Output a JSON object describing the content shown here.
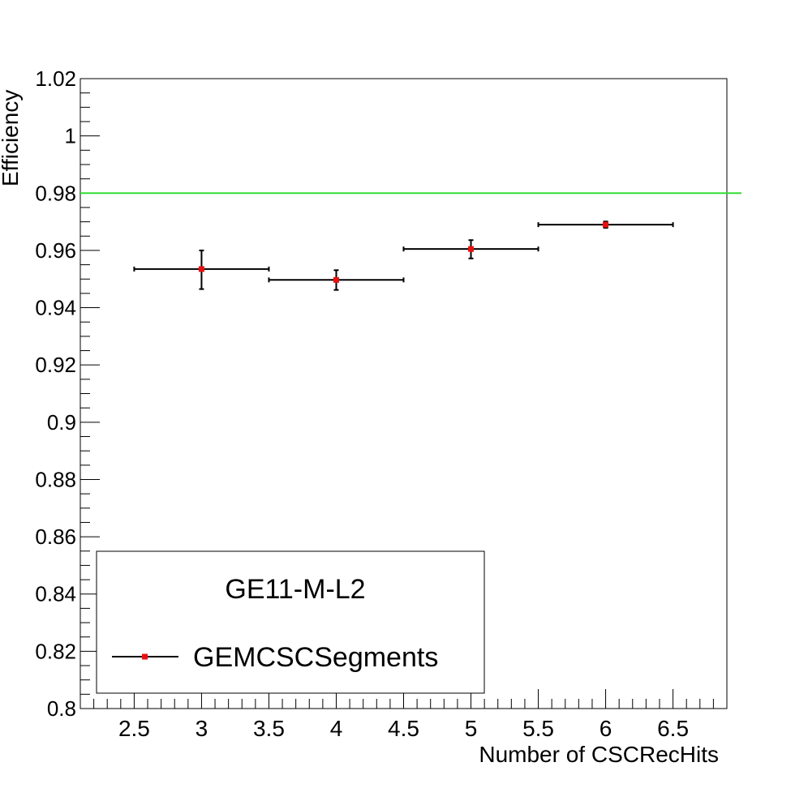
{
  "chart_data": {
    "type": "scatter",
    "xlabel": "Number of CSCRecHits",
    "ylabel": "Efficiency",
    "xlim": [
      2.1,
      6.9
    ],
    "ylim": [
      0.8,
      1.02
    ],
    "x_ticks": [
      "2.5",
      "3",
      "3.5",
      "4",
      "4.5",
      "5",
      "5.5",
      "6",
      "6.5"
    ],
    "y_ticks": [
      "0.8",
      "0.82",
      "0.84",
      "0.86",
      "0.88",
      "0.9",
      "0.92",
      "0.94",
      "0.96",
      "0.98",
      "1",
      "1.02"
    ],
    "series": [
      {
        "name": "GEMCSCSegments",
        "color": "#e8100f",
        "points": [
          {
            "x": 3,
            "y": 0.9535,
            "xlo": 2.5,
            "xhi": 3.5,
            "ylo": 0.9465,
            "yhi": 0.96
          },
          {
            "x": 4,
            "y": 0.9497,
            "xlo": 3.5,
            "xhi": 4.5,
            "ylo": 0.9462,
            "yhi": 0.9531
          },
          {
            "x": 5,
            "y": 0.9605,
            "xlo": 4.5,
            "xhi": 5.5,
            "ylo": 0.9572,
            "yhi": 0.9636
          },
          {
            "x": 6,
            "y": 0.969,
            "xlo": 5.5,
            "xhi": 6.5,
            "ylo": 0.9679,
            "yhi": 0.9701
          }
        ]
      }
    ],
    "reference_line": {
      "y": 0.98,
      "color": "#33dd33"
    },
    "legend": {
      "title": "GE11-M-L2",
      "placement": "bottom-left"
    },
    "grid": false
  }
}
